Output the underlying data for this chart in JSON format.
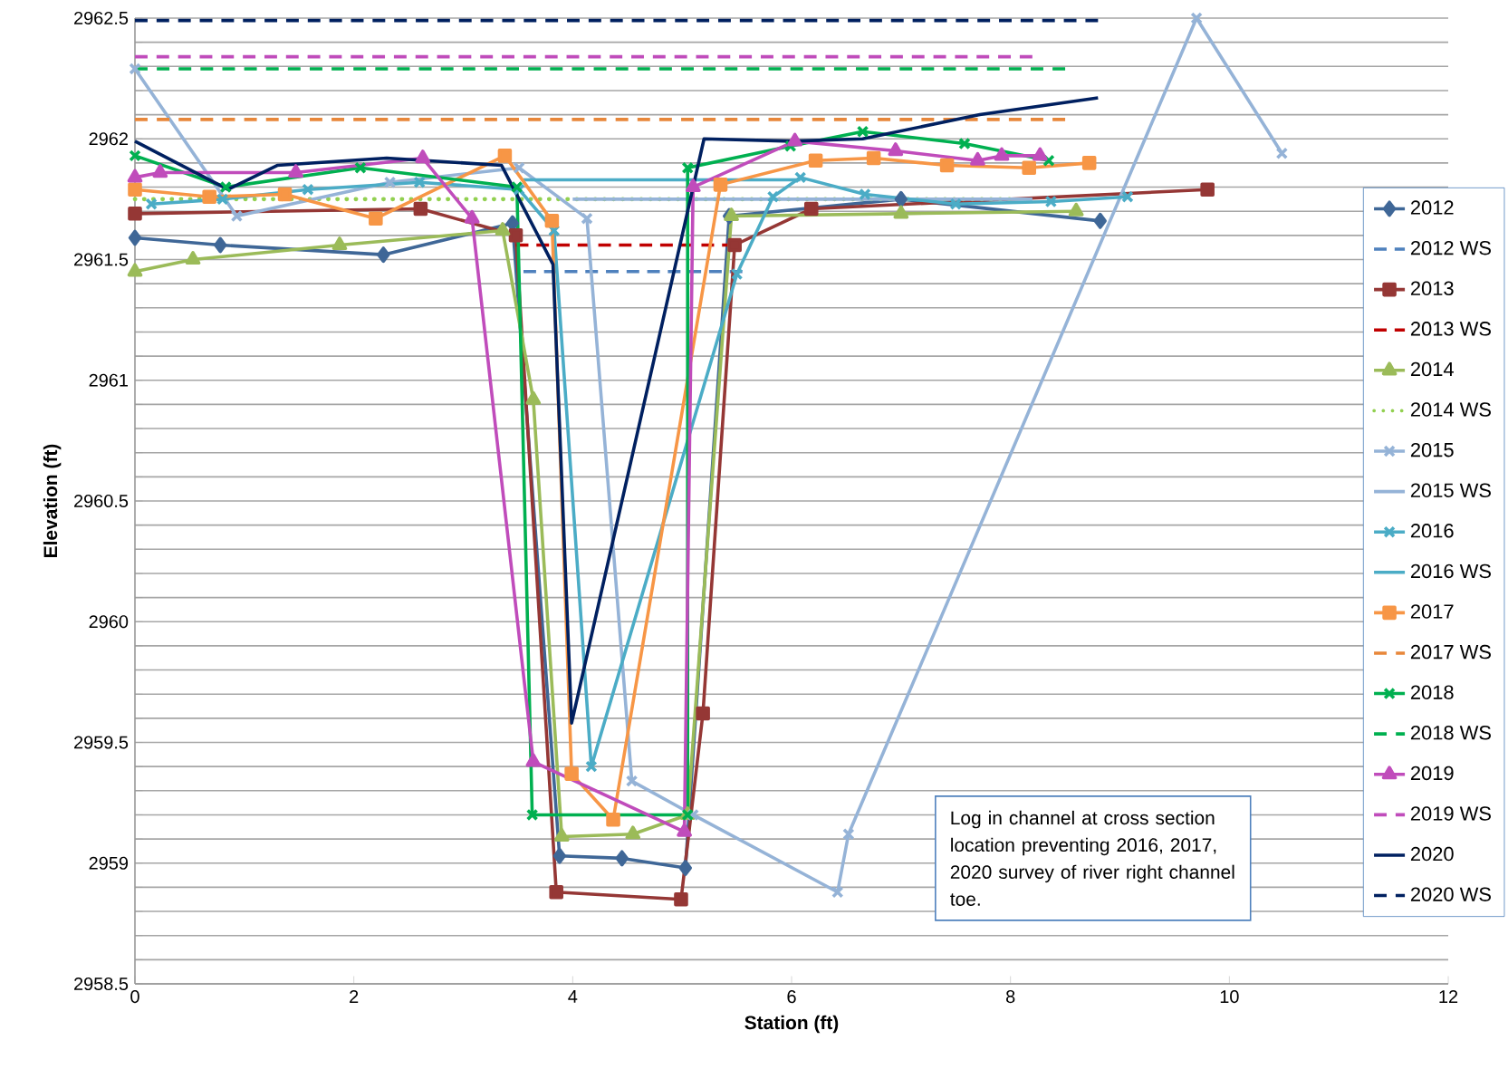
{
  "chart_data": {
    "type": "line",
    "xlabel": "Station (ft)",
    "ylabel": "Elevation (ft)",
    "xlim": [
      0,
      12
    ],
    "xticks": [
      0,
      2,
      4,
      6,
      8,
      10,
      12
    ],
    "ylim": [
      2958.5,
      2962.5
    ],
    "yticks": [
      2958.5,
      {
        "value": 2958.6,
        "label": null
      },
      {
        "value": 2958.7,
        "label": null
      },
      {
        "value": 2958.8,
        "label": null
      },
      {
        "value": 2958.9,
        "label": null
      },
      2959,
      {
        "value": 2959.1,
        "label": null
      },
      {
        "value": 2959.2,
        "label": null
      },
      {
        "value": 2959.3,
        "label": null
      },
      {
        "value": 2959.4,
        "label": null
      },
      2959.5,
      {
        "value": 2959.6,
        "label": null
      },
      {
        "value": 2959.7,
        "label": null
      },
      {
        "value": 2959.8,
        "label": null
      },
      {
        "value": 2959.9,
        "label": null
      },
      2960,
      {
        "value": 2960.1,
        "label": null
      },
      {
        "value": 2960.2,
        "label": null
      },
      {
        "value": 2960.3,
        "label": null
      },
      {
        "value": 2960.4,
        "label": null
      },
      2960.5,
      {
        "value": 2960.6,
        "label": null
      },
      {
        "value": 2960.7,
        "label": null
      },
      {
        "value": 2960.8,
        "label": null
      },
      {
        "value": 2960.9,
        "label": null
      },
      2961,
      {
        "value": 2961.1,
        "label": null
      },
      {
        "value": 2961.2,
        "label": null
      },
      {
        "value": 2961.3,
        "label": null
      },
      {
        "value": 2961.4,
        "label": null
      },
      2961.5,
      {
        "value": 2961.6,
        "label": null
      },
      {
        "value": 2961.7,
        "label": null
      },
      {
        "value": 2961.8,
        "label": null
      },
      {
        "value": 2961.9,
        "label": null
      },
      2962,
      {
        "value": 2962.1,
        "label": null
      },
      {
        "value": 2962.2,
        "label": null
      },
      {
        "value": 2962.3,
        "label": null
      },
      {
        "value": 2962.4,
        "label": null
      },
      2962.5
    ],
    "grid": "y",
    "legend": "right",
    "annotations": [
      "Log in channel at cross section location preventing 2016, 2017, 2020 survey of river right channel toe."
    ],
    "series": [
      {
        "name": "2012",
        "color": "#3f6797",
        "marker": "diamond",
        "line_style": "solid",
        "x": [
          0,
          0.78,
          2.27,
          3.45,
          3.88,
          4.45,
          5.03,
          5.43,
          7.0,
          8.82
        ],
        "values": [
          2961.59,
          2961.56,
          2961.52,
          2961.65,
          2959.03,
          2959.02,
          2958.98,
          2961.68,
          2961.75,
          2961.66
        ]
      },
      {
        "name": "2012 WS",
        "color": "#4f81bd",
        "marker": "none",
        "line_style": "dashed",
        "x": [
          3.55,
          5.55
        ],
        "values": [
          2961.45,
          2961.45
        ]
      },
      {
        "name": "2013",
        "color": "#953735",
        "marker": "square",
        "line_style": "solid",
        "x": [
          0,
          2.61,
          3.48,
          3.85,
          4.99,
          5.19,
          5.48,
          6.18,
          9.8
        ],
        "values": [
          2961.69,
          2961.71,
          2961.6,
          2958.88,
          2958.85,
          2959.62,
          2961.56,
          2961.71,
          2961.79
        ]
      },
      {
        "name": "2013 WS",
        "color": "#c00000",
        "marker": "none",
        "line_style": "dashed",
        "x": [
          3.48,
          5.48
        ],
        "values": [
          2961.56,
          2961.56
        ]
      },
      {
        "name": "2014",
        "color": "#9bbb59",
        "marker": "triangle",
        "line_style": "solid",
        "x": [
          0,
          0.53,
          1.87,
          3.36,
          3.64,
          3.9,
          4.55,
          5.05,
          5.45,
          7.0,
          8.6
        ],
        "values": [
          2961.45,
          2961.5,
          2961.56,
          2961.62,
          2960.92,
          2959.11,
          2959.12,
          2959.2,
          2961.68,
          2961.69,
          2961.7
        ]
      },
      {
        "name": "2014 WS",
        "color": "#92d050",
        "marker": "none",
        "line_style": "dotted",
        "x": [
          0,
          8.0
        ],
        "values": [
          2961.75,
          2961.75
        ]
      },
      {
        "name": "2015",
        "color": "#95b3d7",
        "marker": "cross",
        "line_style": "solid",
        "x": [
          0,
          0.93,
          2.33,
          3.51,
          4.13,
          4.54,
          5.1,
          6.42,
          6.52,
          9.7,
          10.48
        ],
        "values": [
          2962.29,
          2961.68,
          2961.82,
          2961.88,
          2961.67,
          2959.34,
          2959.2,
          2958.88,
          2959.12,
          2962.5,
          2961.94
        ]
      },
      {
        "name": "2015 WS",
        "color": "#95b3d7",
        "marker": "none",
        "line_style": "solid",
        "x": [
          4.0,
          8.2
        ],
        "values": [
          2961.75,
          2961.75
        ]
      },
      {
        "name": "2016",
        "color": "#4bacc6",
        "marker": "cross",
        "line_style": "solid",
        "x": [
          0.15,
          0.8,
          1.58,
          2.6,
          3.51,
          3.83,
          4.17,
          5.5,
          5.83,
          6.08,
          6.67,
          7.5,
          8.37,
          9.07
        ],
        "values": [
          2961.73,
          2961.75,
          2961.79,
          2961.82,
          2961.79,
          2961.62,
          2959.4,
          2961.44,
          2961.76,
          2961.84,
          2961.77,
          2961.73,
          2961.74,
          2961.76
        ]
      },
      {
        "name": "2016 WS",
        "color": "#4bacc6",
        "marker": "none",
        "line_style": "solid",
        "x": [
          3.55,
          6.08
        ],
        "values": [
          2961.83,
          2961.83
        ]
      },
      {
        "name": "2017",
        "color": "#f79646",
        "marker": "square",
        "line_style": "solid",
        "x": [
          0,
          0.68,
          1.37,
          2.2,
          3.38,
          3.81,
          3.99,
          4.37,
          5.35,
          6.22,
          6.75,
          7.42,
          8.17,
          8.72
        ],
        "values": [
          2961.79,
          2961.76,
          2961.77,
          2961.67,
          2961.93,
          2961.66,
          2959.37,
          2959.18,
          2961.81,
          2961.91,
          2961.92,
          2961.89,
          2961.88,
          2961.9
        ]
      },
      {
        "name": "2017 WS",
        "color": "#e8873a",
        "marker": "none",
        "line_style": "dashed",
        "x": [
          0,
          8.5
        ],
        "values": [
          2962.08,
          2962.08
        ]
      },
      {
        "name": "2018",
        "color": "#00b050",
        "marker": "cross",
        "line_style": "solid",
        "x": [
          0,
          0.83,
          2.06,
          3.49,
          3.63,
          5.05,
          5.05,
          5.99,
          6.65,
          7.58,
          8.35
        ],
        "values": [
          2961.93,
          2961.8,
          2961.88,
          2961.8,
          2959.2,
          2959.2,
          2961.88,
          2961.97,
          2962.03,
          2961.98,
          2961.91
        ]
      },
      {
        "name": "2018 WS",
        "color": "#00b050",
        "marker": "none",
        "line_style": "dashed",
        "x": [
          0,
          8.5
        ],
        "values": [
          2962.29,
          2962.29
        ]
      },
      {
        "name": "2019",
        "color": "#c04cbb",
        "marker": "triangle",
        "line_style": "solid",
        "x": [
          0,
          0.23,
          1.47,
          2.63,
          3.08,
          3.64,
          5.02,
          5.1,
          6.03,
          6.95,
          7.7,
          7.92,
          8.27
        ],
        "values": [
          2961.84,
          2961.86,
          2961.86,
          2961.92,
          2961.67,
          2959.42,
          2959.13,
          2961.8,
          2961.99,
          2961.95,
          2961.91,
          2961.93,
          2961.93
        ]
      },
      {
        "name": "2019 WS",
        "color": "#c04cbb",
        "marker": "none",
        "line_style": "dashed",
        "x": [
          0,
          8.2
        ],
        "values": [
          2962.34,
          2962.34
        ]
      },
      {
        "name": "2020",
        "color": "#002060",
        "marker": "none",
        "line_style": "solid",
        "x": [
          0,
          0.85,
          1.3,
          2.3,
          3.35,
          3.82,
          3.99,
          5.2,
          6.0,
          6.65,
          7.72,
          8.8
        ],
        "values": [
          2961.99,
          2961.79,
          2961.89,
          2961.92,
          2961.89,
          2961.48,
          2959.58,
          2962.0,
          2961.99,
          2962.0,
          2962.1,
          2962.17
        ]
      },
      {
        "name": "2020 WS",
        "color": "#002060",
        "marker": "none",
        "line_style": "dashed",
        "x": [
          0,
          8.8
        ],
        "values": [
          2962.49,
          2962.49
        ]
      }
    ]
  }
}
